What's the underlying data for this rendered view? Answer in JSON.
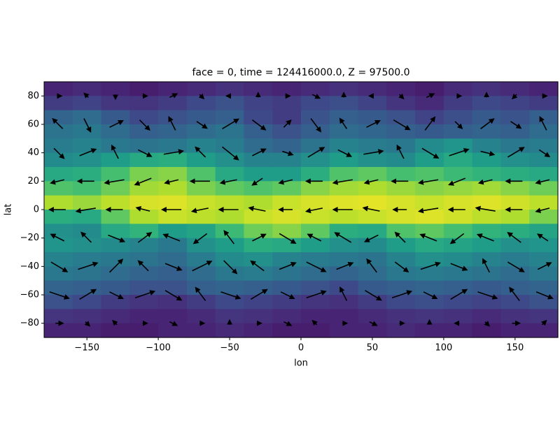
{
  "chart_data": {
    "type": "heatmap-quiver",
    "title": "face = 0, time = 124416000.0, Z = 97500.0",
    "x_label": "lon",
    "y_label": "lat",
    "xlim": [
      -180,
      180
    ],
    "ylim": [
      -90,
      90
    ],
    "xticks": [
      {
        "value": -150,
        "label": "−150"
      },
      {
        "value": -100,
        "label": "−100"
      },
      {
        "value": -50,
        "label": "−50"
      },
      0,
      50,
      100,
      150
    ],
    "yticks": [
      {
        "value": -80,
        "label": "−80"
      },
      {
        "value": -60,
        "label": "−60"
      },
      {
        "value": -40,
        "label": "−40"
      },
      {
        "value": -20,
        "label": "−20"
      },
      0,
      20,
      40,
      60,
      80
    ],
    "colormap": "viridis",
    "clim": [
      0,
      1
    ],
    "field": [
      [
        0.1,
        0.12,
        0.1,
        0.08,
        0.1,
        0.12,
        0.14,
        0.12,
        0.1,
        0.12,
        0.14,
        0.12,
        0.1,
        0.08,
        0.12,
        0.14,
        0.12,
        0.1
      ],
      [
        0.18,
        0.2,
        0.16,
        0.15,
        0.18,
        0.22,
        0.25,
        0.2,
        0.18,
        0.22,
        0.24,
        0.2,
        0.15,
        0.12,
        0.18,
        0.22,
        0.2,
        0.18
      ],
      [
        0.32,
        0.35,
        0.28,
        0.22,
        0.25,
        0.28,
        0.3,
        0.22,
        0.18,
        0.26,
        0.3,
        0.28,
        0.25,
        0.2,
        0.24,
        0.28,
        0.26,
        0.3
      ],
      [
        0.38,
        0.4,
        0.35,
        0.3,
        0.32,
        0.35,
        0.38,
        0.3,
        0.25,
        0.3,
        0.35,
        0.33,
        0.3,
        0.28,
        0.3,
        0.32,
        0.3,
        0.35
      ],
      [
        0.42,
        0.45,
        0.4,
        0.38,
        0.4,
        0.45,
        0.42,
        0.35,
        0.32,
        0.38,
        0.45,
        0.42,
        0.4,
        0.48,
        0.52,
        0.45,
        0.4,
        0.42
      ],
      [
        0.48,
        0.5,
        0.55,
        0.6,
        0.62,
        0.55,
        0.5,
        0.45,
        0.45,
        0.5,
        0.55,
        0.5,
        0.48,
        0.55,
        0.6,
        0.55,
        0.5,
        0.48
      ],
      [
        0.6,
        0.62,
        0.7,
        0.8,
        0.82,
        0.72,
        0.6,
        0.55,
        0.55,
        0.62,
        0.72,
        0.75,
        0.7,
        0.72,
        0.68,
        0.65,
        0.62,
        0.6
      ],
      [
        0.72,
        0.7,
        0.78,
        0.86,
        0.88,
        0.8,
        0.75,
        0.72,
        0.75,
        0.82,
        0.86,
        0.88,
        0.85,
        0.82,
        0.84,
        0.86,
        0.82,
        0.78
      ],
      [
        0.88,
        0.85,
        0.9,
        0.94,
        0.95,
        0.92,
        0.9,
        0.88,
        0.92,
        0.94,
        0.95,
        0.96,
        0.94,
        0.92,
        0.94,
        0.95,
        0.93,
        0.9
      ],
      [
        0.62,
        0.6,
        0.75,
        0.88,
        0.92,
        0.9,
        0.88,
        0.92,
        0.94,
        0.92,
        0.9,
        0.92,
        0.94,
        0.95,
        0.93,
        0.9,
        0.88,
        0.8
      ],
      [
        0.5,
        0.48,
        0.6,
        0.65,
        0.55,
        0.58,
        0.68,
        0.78,
        0.82,
        0.75,
        0.62,
        0.6,
        0.72,
        0.75,
        0.7,
        0.65,
        0.62,
        0.58
      ],
      [
        0.52,
        0.5,
        0.48,
        0.45,
        0.4,
        0.5,
        0.55,
        0.62,
        0.6,
        0.55,
        0.5,
        0.48,
        0.55,
        0.6,
        0.58,
        0.55,
        0.5,
        0.52
      ],
      [
        0.45,
        0.42,
        0.4,
        0.38,
        0.35,
        0.42,
        0.48,
        0.5,
        0.45,
        0.42,
        0.4,
        0.38,
        0.45,
        0.5,
        0.48,
        0.45,
        0.42,
        0.45
      ],
      [
        0.4,
        0.38,
        0.35,
        0.32,
        0.3,
        0.35,
        0.4,
        0.42,
        0.38,
        0.35,
        0.32,
        0.35,
        0.4,
        0.42,
        0.4,
        0.38,
        0.35,
        0.4
      ],
      [
        0.32,
        0.3,
        0.28,
        0.25,
        0.25,
        0.3,
        0.32,
        0.3,
        0.28,
        0.25,
        0.22,
        0.28,
        0.3,
        0.32,
        0.3,
        0.28,
        0.3,
        0.32
      ],
      [
        0.25,
        0.22,
        0.18,
        0.15,
        0.14,
        0.18,
        0.22,
        0.2,
        0.18,
        0.15,
        0.14,
        0.18,
        0.22,
        0.24,
        0.22,
        0.2,
        0.22,
        0.25
      ],
      [
        0.15,
        0.14,
        0.12,
        0.1,
        0.1,
        0.12,
        0.15,
        0.14,
        0.12,
        0.1,
        0.1,
        0.12,
        0.14,
        0.15,
        0.14,
        0.12,
        0.14,
        0.15
      ],
      [
        0.1,
        0.1,
        0.08,
        0.08,
        0.1,
        0.1,
        0.12,
        0.1,
        0.08,
        0.08,
        0.1,
        0.1,
        0.12,
        0.1,
        0.1,
        0.08,
        0.1,
        0.1
      ]
    ],
    "quiver": {
      "lon": [
        -170,
        -150,
        -130,
        -110,
        -90,
        -70,
        -50,
        -30,
        -10,
        10,
        30,
        50,
        70,
        90,
        110,
        130,
        150,
        170
      ],
      "lat": [
        80,
        60,
        40,
        20,
        0,
        -20,
        -40,
        -60,
        -80
      ],
      "u": [
        [
          1,
          -1,
          0,
          1,
          2,
          1,
          -1,
          0,
          1,
          2,
          0,
          -1,
          1,
          2,
          1,
          0,
          -1,
          1
        ],
        [
          -3,
          2,
          4,
          3,
          -2,
          3,
          5,
          4,
          2,
          3,
          -2,
          4,
          5,
          3,
          2,
          4,
          3,
          -2
        ],
        [
          3,
          5,
          -2,
          4,
          6,
          -3,
          5,
          4,
          3,
          5,
          4,
          6,
          -2,
          5,
          6,
          4,
          5,
          3
        ],
        [
          -4,
          -5,
          -6,
          -5,
          -4,
          -6,
          -5,
          -3,
          -4,
          -5,
          -6,
          -4,
          -5,
          -6,
          -5,
          -4,
          -5,
          -4
        ],
        [
          -5,
          -6,
          -5,
          -4,
          -6,
          -5,
          -6,
          -5,
          -4,
          -5,
          -6,
          -5,
          -4,
          -6,
          -5,
          -6,
          -5,
          -4
        ],
        [
          -4,
          -3,
          5,
          4,
          -5,
          -4,
          -3,
          4,
          5,
          -4,
          -5,
          -4,
          -3,
          -5,
          -4,
          -5,
          -4,
          -3
        ],
        [
          5,
          6,
          4,
          -3,
          5,
          6,
          4,
          -4,
          5,
          6,
          5,
          -3,
          4,
          6,
          5,
          -2,
          5,
          4
        ],
        [
          6,
          5,
          4,
          6,
          5,
          -3,
          6,
          5,
          4,
          6,
          -2,
          5,
          6,
          4,
          5,
          6,
          -3,
          5
        ],
        [
          2,
          1,
          -1,
          1,
          2,
          1,
          0,
          1,
          2,
          -1,
          1,
          2,
          1,
          0,
          -1,
          1,
          2,
          1
        ]
      ],
      "v": [
        [
          0,
          1,
          -1,
          0,
          1,
          -1,
          0,
          1,
          0,
          -1,
          1,
          0,
          -1,
          1,
          0,
          1,
          -1,
          0
        ],
        [
          3,
          -4,
          2,
          -3,
          4,
          -2,
          3,
          -3,
          2,
          -4,
          3,
          2,
          -3,
          4,
          -2,
          3,
          -2,
          4
        ],
        [
          -3,
          2,
          4,
          -2,
          1,
          3,
          -4,
          2,
          -1,
          3,
          -2,
          1,
          4,
          -3,
          2,
          -1,
          3,
          -2
        ],
        [
          -1,
          0,
          -1,
          -2,
          -1,
          0,
          -1,
          -2,
          -1,
          0,
          -1,
          -1,
          0,
          -1,
          -2,
          -1,
          0,
          -1
        ],
        [
          0,
          -1,
          0,
          1,
          0,
          -1,
          0,
          1,
          0,
          -1,
          0,
          1,
          0,
          -1,
          0,
          1,
          0,
          -1
        ],
        [
          2,
          3,
          -2,
          3,
          2,
          -3,
          4,
          2,
          -3,
          2,
          3,
          -2,
          3,
          2,
          -3,
          2,
          3,
          2
        ],
        [
          -3,
          2,
          4,
          3,
          -2,
          3,
          -4,
          3,
          2,
          -3,
          2,
          4,
          -3,
          2,
          -2,
          4,
          -3,
          2
        ],
        [
          -2,
          3,
          -2,
          2,
          -3,
          4,
          -2,
          3,
          -2,
          2,
          4,
          -3,
          2,
          -2,
          3,
          -2,
          4,
          -2
        ],
        [
          0,
          -1,
          1,
          0,
          -1,
          0,
          1,
          0,
          -1,
          1,
          0,
          -1,
          0,
          1,
          0,
          -1,
          0,
          1
        ]
      ]
    }
  }
}
